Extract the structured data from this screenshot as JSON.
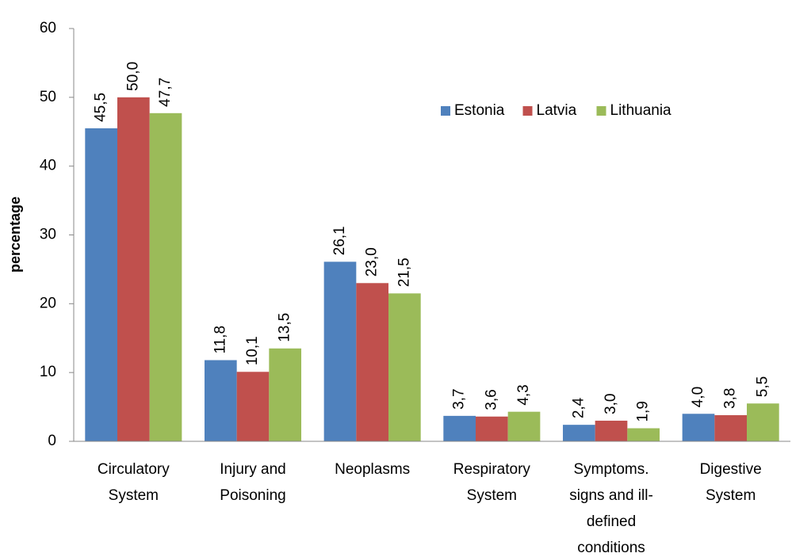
{
  "chart_data": {
    "type": "bar",
    "y_label": "percentage",
    "categories": [
      "Circulatory System",
      "Injury and Poisoning",
      "Neoplasms",
      "Respiratory System",
      "Symptoms. signs and ill-defined conditions",
      "Digestive System"
    ],
    "series": [
      {
        "name": "Estonia",
        "color": "#4f81bd",
        "values": [
          45.5,
          11.8,
          26.1,
          3.7,
          2.4,
          4.0
        ],
        "value_labels": [
          "45,5",
          "11,8",
          "26,1",
          "3,7",
          "2,4",
          "4,0"
        ]
      },
      {
        "name": "Latvia",
        "color": "#c0504d",
        "values": [
          50.0,
          10.1,
          23.0,
          3.6,
          3.0,
          3.8
        ],
        "value_labels": [
          "50,0",
          "10,1",
          "23,0",
          "3,6",
          "3,0",
          "3,8"
        ]
      },
      {
        "name": "Lithuania",
        "color": "#9bbb59",
        "values": [
          47.7,
          13.5,
          21.5,
          4.3,
          1.9,
          5.5
        ],
        "value_labels": [
          "47,7",
          "13,5",
          "21,5",
          "4,3",
          "1,9",
          "5,5"
        ]
      }
    ],
    "ylim": [
      0,
      60
    ],
    "yticks": [
      0,
      10,
      20,
      30,
      40,
      50,
      60
    ],
    "grid": false,
    "legend": "upper right"
  }
}
